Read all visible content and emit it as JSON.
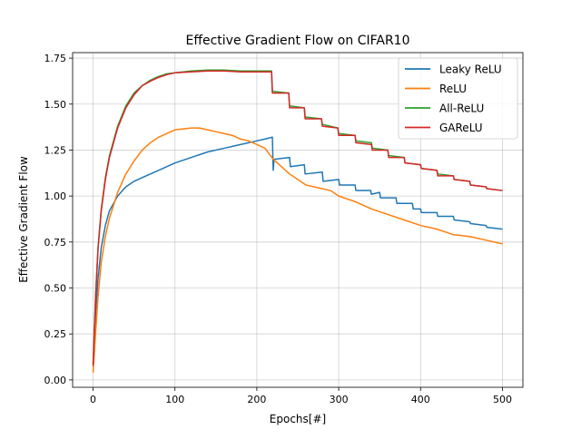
{
  "chart_data": {
    "type": "line",
    "title": "Effective Gradient Flow on CIFAR10",
    "xlabel": "Epochs[#]",
    "ylabel": "Effective Gradient Flow",
    "xlim": [
      -25,
      525
    ],
    "ylim": [
      -0.04,
      1.78
    ],
    "xticks": [
      0,
      100,
      200,
      300,
      400,
      500
    ],
    "xtick_labels": [
      "0",
      "100",
      "200",
      "300",
      "400",
      "500"
    ],
    "yticks": [
      0.0,
      0.25,
      0.5,
      0.75,
      1.0,
      1.25,
      1.5,
      1.75
    ],
    "ytick_labels": [
      "0.00",
      "0.25",
      "0.50",
      "0.75",
      "1.00",
      "1.25",
      "1.50",
      "1.75"
    ],
    "grid": true,
    "legend_position": "top-right",
    "series": [
      {
        "name": "Leaky ReLU",
        "color": "#1f77b4",
        "points": [
          [
            0,
            0.07
          ],
          [
            3,
            0.35
          ],
          [
            6,
            0.55
          ],
          [
            10,
            0.72
          ],
          [
            15,
            0.84
          ],
          [
            20,
            0.92
          ],
          [
            30,
            1.0
          ],
          [
            40,
            1.05
          ],
          [
            50,
            1.08
          ],
          [
            60,
            1.1
          ],
          [
            80,
            1.14
          ],
          [
            100,
            1.18
          ],
          [
            120,
            1.21
          ],
          [
            140,
            1.24
          ],
          [
            160,
            1.26
          ],
          [
            180,
            1.28
          ],
          [
            200,
            1.3
          ],
          [
            210,
            1.31
          ],
          [
            219,
            1.32
          ],
          [
            220,
            1.14
          ],
          [
            221,
            1.2
          ],
          [
            240,
            1.21
          ],
          [
            241,
            1.16
          ],
          [
            258,
            1.17
          ],
          [
            259,
            1.12
          ],
          [
            280,
            1.13
          ],
          [
            281,
            1.08
          ],
          [
            300,
            1.09
          ],
          [
            301,
            1.06
          ],
          [
            320,
            1.06
          ],
          [
            321,
            1.03
          ],
          [
            339,
            1.03
          ],
          [
            340,
            1.01
          ],
          [
            350,
            1.02
          ],
          [
            351,
            0.99
          ],
          [
            370,
            0.99
          ],
          [
            371,
            0.96
          ],
          [
            390,
            0.96
          ],
          [
            391,
            0.93
          ],
          [
            400,
            0.93
          ],
          [
            401,
            0.91
          ],
          [
            420,
            0.91
          ],
          [
            421,
            0.89
          ],
          [
            440,
            0.89
          ],
          [
            441,
            0.87
          ],
          [
            460,
            0.86
          ],
          [
            461,
            0.85
          ],
          [
            480,
            0.84
          ],
          [
            481,
            0.83
          ],
          [
            500,
            0.82
          ]
        ]
      },
      {
        "name": "ReLU",
        "color": "#ff7f0e",
        "points": [
          [
            0,
            0.04
          ],
          [
            3,
            0.25
          ],
          [
            6,
            0.45
          ],
          [
            10,
            0.64
          ],
          [
            15,
            0.78
          ],
          [
            20,
            0.88
          ],
          [
            30,
            1.02
          ],
          [
            40,
            1.12
          ],
          [
            50,
            1.19
          ],
          [
            60,
            1.25
          ],
          [
            70,
            1.29
          ],
          [
            80,
            1.32
          ],
          [
            90,
            1.34
          ],
          [
            100,
            1.36
          ],
          [
            110,
            1.365
          ],
          [
            120,
            1.37
          ],
          [
            130,
            1.37
          ],
          [
            140,
            1.36
          ],
          [
            150,
            1.35
          ],
          [
            160,
            1.34
          ],
          [
            170,
            1.33
          ],
          [
            180,
            1.31
          ],
          [
            190,
            1.3
          ],
          [
            200,
            1.28
          ],
          [
            210,
            1.26
          ],
          [
            220,
            1.2
          ],
          [
            230,
            1.16
          ],
          [
            240,
            1.12
          ],
          [
            250,
            1.09
          ],
          [
            260,
            1.06
          ],
          [
            270,
            1.05
          ],
          [
            280,
            1.04
          ],
          [
            290,
            1.03
          ],
          [
            300,
            1.0
          ],
          [
            320,
            0.97
          ],
          [
            340,
            0.93
          ],
          [
            360,
            0.9
          ],
          [
            380,
            0.87
          ],
          [
            400,
            0.84
          ],
          [
            420,
            0.82
          ],
          [
            440,
            0.79
          ],
          [
            460,
            0.78
          ],
          [
            480,
            0.76
          ],
          [
            500,
            0.74
          ]
        ]
      },
      {
        "name": "All-ReLU",
        "color": "#2ca02c",
        "points": [
          [
            0,
            0.09
          ],
          [
            3,
            0.45
          ],
          [
            6,
            0.72
          ],
          [
            10,
            0.93
          ],
          [
            15,
            1.1
          ],
          [
            20,
            1.22
          ],
          [
            30,
            1.38
          ],
          [
            40,
            1.49
          ],
          [
            50,
            1.56
          ],
          [
            60,
            1.6
          ],
          [
            70,
            1.63
          ],
          [
            80,
            1.65
          ],
          [
            90,
            1.665
          ],
          [
            100,
            1.67
          ],
          [
            120,
            1.68
          ],
          [
            140,
            1.685
          ],
          [
            160,
            1.685
          ],
          [
            180,
            1.68
          ],
          [
            200,
            1.68
          ],
          [
            218,
            1.68
          ],
          [
            219,
            1.57
          ],
          [
            239,
            1.56
          ],
          [
            240,
            1.49
          ],
          [
            258,
            1.48
          ],
          [
            259,
            1.43
          ],
          [
            279,
            1.42
          ],
          [
            280,
            1.39
          ],
          [
            299,
            1.37
          ],
          [
            300,
            1.34
          ],
          [
            320,
            1.33
          ],
          [
            321,
            1.3
          ],
          [
            340,
            1.29
          ],
          [
            341,
            1.26
          ],
          [
            360,
            1.25
          ],
          [
            361,
            1.22
          ],
          [
            380,
            1.21
          ],
          [
            381,
            1.18
          ],
          [
            400,
            1.17
          ],
          [
            401,
            1.15
          ],
          [
            420,
            1.14
          ],
          [
            421,
            1.12
          ],
          [
            440,
            1.11
          ],
          [
            441,
            1.09
          ],
          [
            460,
            1.08
          ],
          [
            461,
            1.06
          ],
          [
            480,
            1.05
          ],
          [
            481,
            1.04
          ],
          [
            500,
            1.03
          ]
        ]
      },
      {
        "name": "GAReLU",
        "color": "#d62728",
        "points": [
          [
            0,
            0.08
          ],
          [
            3,
            0.44
          ],
          [
            6,
            0.71
          ],
          [
            10,
            0.92
          ],
          [
            15,
            1.09
          ],
          [
            20,
            1.21
          ],
          [
            30,
            1.37
          ],
          [
            40,
            1.48
          ],
          [
            50,
            1.55
          ],
          [
            60,
            1.6
          ],
          [
            70,
            1.625
          ],
          [
            80,
            1.645
          ],
          [
            90,
            1.66
          ],
          [
            100,
            1.67
          ],
          [
            120,
            1.675
          ],
          [
            140,
            1.68
          ],
          [
            160,
            1.68
          ],
          [
            180,
            1.675
          ],
          [
            200,
            1.675
          ],
          [
            218,
            1.675
          ],
          [
            219,
            1.56
          ],
          [
            239,
            1.56
          ],
          [
            240,
            1.48
          ],
          [
            258,
            1.48
          ],
          [
            259,
            1.42
          ],
          [
            279,
            1.42
          ],
          [
            280,
            1.38
          ],
          [
            299,
            1.37
          ],
          [
            300,
            1.33
          ],
          [
            320,
            1.33
          ],
          [
            321,
            1.29
          ],
          [
            340,
            1.28
          ],
          [
            341,
            1.25
          ],
          [
            360,
            1.25
          ],
          [
            361,
            1.21
          ],
          [
            380,
            1.21
          ],
          [
            381,
            1.18
          ],
          [
            400,
            1.17
          ],
          [
            401,
            1.15
          ],
          [
            420,
            1.14
          ],
          [
            421,
            1.11
          ],
          [
            440,
            1.11
          ],
          [
            441,
            1.09
          ],
          [
            460,
            1.08
          ],
          [
            461,
            1.06
          ],
          [
            480,
            1.05
          ],
          [
            481,
            1.04
          ],
          [
            500,
            1.03
          ]
        ]
      }
    ]
  }
}
